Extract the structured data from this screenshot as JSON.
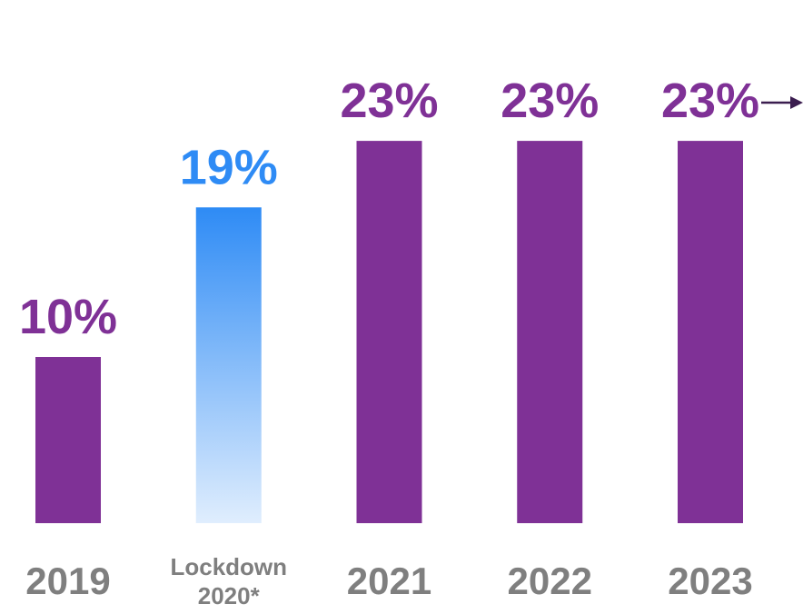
{
  "chart_data": {
    "type": "bar",
    "categories": [
      "2019",
      "Lockdown 2020*",
      "2021",
      "2022",
      "2023"
    ],
    "values": [
      10,
      19,
      23,
      23,
      23
    ],
    "value_labels": [
      "10%",
      "19%",
      "23%",
      "23%",
      "23%"
    ],
    "colors": [
      "#7f3196",
      "#2e8bf5",
      "#7f3196",
      "#7f3196",
      "#7f3196"
    ],
    "gradient": [
      false,
      true,
      false,
      false,
      false
    ]
  }
}
